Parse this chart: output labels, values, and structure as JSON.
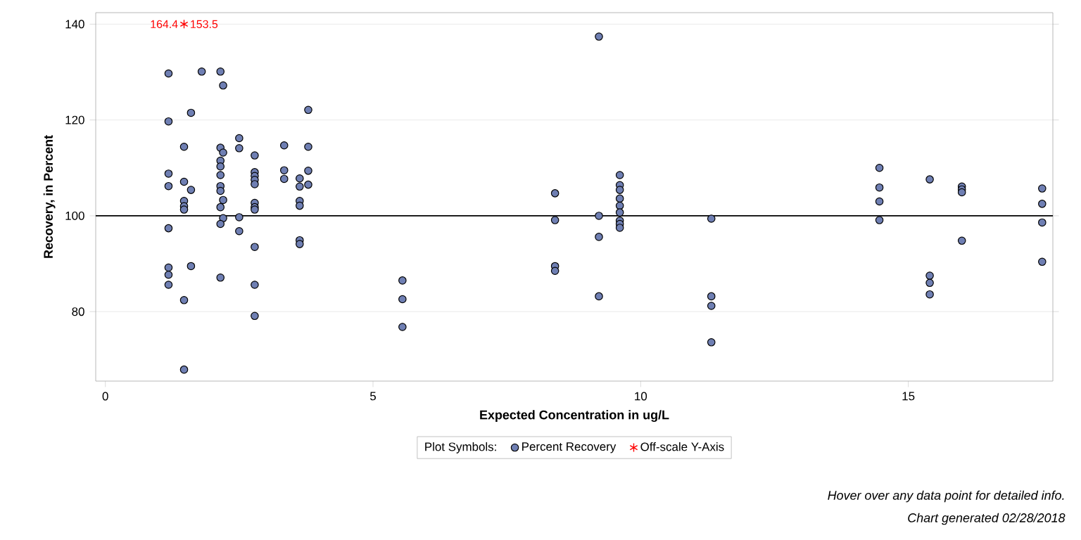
{
  "chart_data": {
    "type": "scatter",
    "xlabel": "Expected Concentration in ug/L",
    "ylabel": "Recovery, in Percent",
    "legend_title": "Plot Symbols:",
    "series": [
      {
        "name": "Percent Recovery",
        "color": "#6f7fb3",
        "marker": "circle",
        "x": [
          1.18,
          1.18,
          1.18,
          1.18,
          1.18,
          1.18,
          1.18,
          1.18,
          1.47,
          1.47,
          1.47,
          1.47,
          1.47,
          1.47,
          1.47,
          1.6,
          1.6,
          1.6,
          1.8,
          2.15,
          2.2,
          2.15,
          2.2,
          2.15,
          2.15,
          2.15,
          2.15,
          2.15,
          2.2,
          2.15,
          2.2,
          2.15,
          2.15,
          2.5,
          2.5,
          2.5,
          2.5,
          2.79,
          2.79,
          2.79,
          2.79,
          2.79,
          2.79,
          2.79,
          2.79,
          2.79,
          2.79,
          2.79,
          3.34,
          3.34,
          3.34,
          3.63,
          3.63,
          3.63,
          3.63,
          3.63,
          3.63,
          3.79,
          3.79,
          3.79,
          3.79,
          5.55,
          5.55,
          5.55,
          8.4,
          8.4,
          8.4,
          8.4,
          9.22,
          9.22,
          9.22,
          9.22,
          9.61,
          9.61,
          9.61,
          9.61,
          9.61,
          9.61,
          9.61,
          9.61,
          9.61,
          11.32,
          11.32,
          11.32,
          11.32,
          14.46,
          14.46,
          14.46,
          14.46,
          15.4,
          15.4,
          15.4,
          15.4,
          16.0,
          16.0,
          16.0,
          16.0,
          17.5,
          17.5,
          17.5,
          17.5
        ],
        "values": [
          129.7,
          119.7,
          108.8,
          106.2,
          97.4,
          89.2,
          87.7,
          85.6,
          114.4,
          107.1,
          103.1,
          102.0,
          101.3,
          82.4,
          67.9,
          121.5,
          105.4,
          89.5,
          130.1,
          130.1,
          127.2,
          114.2,
          113.2,
          111.5,
          110.3,
          108.5,
          106.2,
          105.2,
          103.3,
          101.8,
          99.5,
          98.3,
          87.1,
          116.2,
          114.1,
          99.7,
          96.8,
          112.6,
          109.1,
          108.3,
          107.5,
          106.6,
          102.7,
          101.8,
          101.3,
          93.5,
          85.6,
          79.1,
          114.7,
          109.5,
          107.7,
          107.8,
          106.1,
          103.1,
          102.1,
          94.9,
          94.1,
          122.1,
          114.4,
          109.4,
          106.5,
          86.5,
          82.6,
          76.8,
          104.7,
          99.1,
          89.5,
          88.5,
          137.4,
          100.0,
          95.6,
          83.2,
          108.5,
          106.4,
          105.4,
          103.6,
          102.1,
          100.7,
          99.0,
          98.3,
          97.5,
          99.4,
          83.2,
          81.2,
          73.6,
          110.0,
          105.9,
          103.0,
          99.1,
          107.6,
          87.5,
          86.0,
          83.6,
          106.1,
          105.5,
          104.9,
          94.8,
          105.7,
          102.5,
          98.6,
          90.4
        ]
      },
      {
        "name": "Off-scale Y-Axis",
        "color": "#ff0000",
        "marker": "cross",
        "x": [
          1.47
        ],
        "values": [
          140
        ]
      }
    ],
    "annotations": [
      {
        "text": "164.4",
        "x": 1.47,
        "y": 140
      },
      {
        "text": "153.5",
        "x": 1.47,
        "y": 140
      },
      "Hover over any data point for detailed info.",
      "Chart generated 02/28/2018"
    ],
    "ref_lines": [
      {
        "axis": "y",
        "value": 100,
        "color": "#000000"
      }
    ],
    "xlim": [
      -0.18,
      17.7
    ],
    "ylim": [
      65.5,
      142.4
    ],
    "xticks": [
      0,
      5,
      10,
      15
    ],
    "yticks": [
      80,
      100,
      120,
      140
    ],
    "grid": "y",
    "legend": "bottom"
  }
}
